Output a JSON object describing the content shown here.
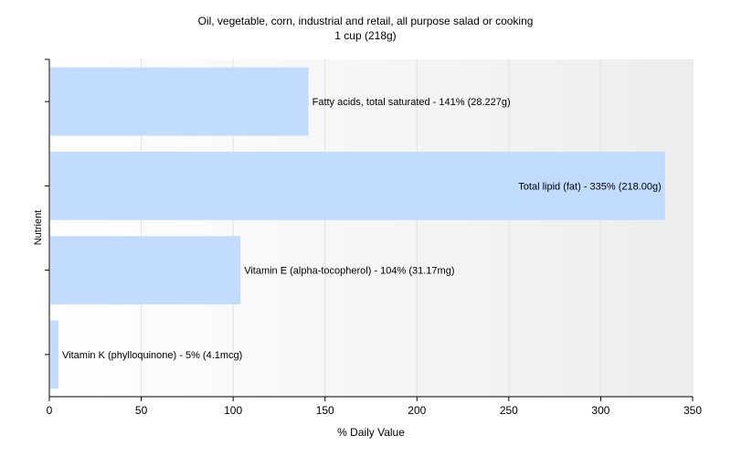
{
  "chart_data": {
    "type": "bar",
    "orientation": "horizontal",
    "title": "Oil, vegetable, corn, industrial and retail, all purpose salad or cooking",
    "subtitle": "1 cup (218g)",
    "xlabel": "% Daily Value",
    "ylabel": "Nutrient",
    "xlim": [
      0,
      350
    ],
    "xticks": [
      0,
      50,
      100,
      150,
      200,
      250,
      300,
      350
    ],
    "grid": true,
    "categories": [
      "Fatty acids, total saturated",
      "Total lipid (fat)",
      "Vitamin E (alpha-tocopherol)",
      "Vitamin K (phylloquinone)"
    ],
    "values": [
      141,
      335,
      104,
      5
    ],
    "labels": [
      "Fatty acids, total saturated - 141% (28.227g)",
      "Total lipid (fat) - 335% (218.00g)",
      "Vitamin E (alpha-tocopherol) - 104% (31.17mg)",
      "Vitamin K (phylloquinone) - 5% (4.1mcg)"
    ],
    "bar_color": "#c2dcff"
  }
}
